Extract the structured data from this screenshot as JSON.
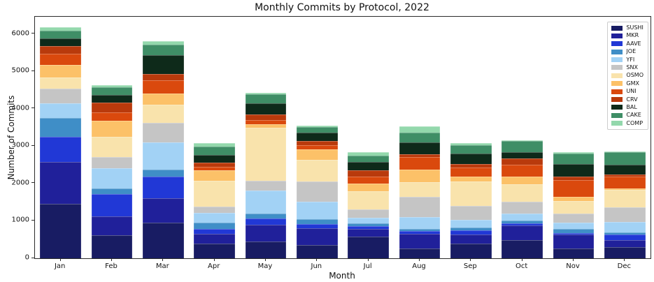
{
  "chart_data": {
    "type": "bar",
    "stacked": true,
    "title": "Monthly Commits by Protocol, 2022",
    "xlabel": "Month",
    "ylabel": "Number of Commits",
    "categories": [
      "Jan",
      "Feb",
      "Mar",
      "Apr",
      "May",
      "Jun",
      "Jul",
      "Aug",
      "Sep",
      "Oct",
      "Nov",
      "Dec"
    ],
    "yticks": [
      0,
      1000,
      2000,
      3000,
      4000,
      5000,
      6000
    ],
    "ylim": [
      0,
      6460
    ],
    "grid": false,
    "legend_position": "upper right",
    "series": [
      {
        "name": "SUSHI",
        "color": "#181c63",
        "values": [
          1450,
          620,
          960,
          400,
          440,
          360,
          570,
          260,
          390,
          480,
          270,
          300
        ]
      },
      {
        "name": "MKR",
        "color": "#20209a",
        "values": [
          1130,
          500,
          640,
          250,
          460,
          440,
          220,
          390,
          250,
          400,
          360,
          190
        ]
      },
      {
        "name": "AAVE",
        "color": "#2138d6",
        "values": [
          660,
          590,
          590,
          140,
          160,
          110,
          60,
          80,
          110,
          50,
          50,
          140
        ]
      },
      {
        "name": "JOE",
        "color": "#3f8ec7",
        "values": [
          510,
          160,
          190,
          170,
          140,
          140,
          90,
          60,
          80,
          80,
          110,
          60
        ]
      },
      {
        "name": "YFI",
        "color": "#a2d2f5",
        "values": [
          390,
          540,
          720,
          250,
          620,
          470,
          150,
          310,
          200,
          190,
          160,
          290
        ]
      },
      {
        "name": "SNX",
        "color": "#c5c5c5",
        "values": [
          390,
          300,
          520,
          170,
          250,
          530,
          220,
          540,
          370,
          310,
          250,
          380
        ]
      },
      {
        "name": "OSMO",
        "color": "#f9e3ac",
        "values": [
          310,
          530,
          480,
          690,
          1430,
          590,
          490,
          390,
          660,
          470,
          340,
          470
        ]
      },
      {
        "name": "GMX",
        "color": "#fcc168",
        "values": [
          330,
          430,
          310,
          280,
          90,
          280,
          190,
          340,
          120,
          200,
          110,
          40
        ]
      },
      {
        "name": "UNI",
        "color": "#da490d",
        "values": [
          300,
          240,
          350,
          90,
          110,
          100,
          200,
          330,
          240,
          330,
          450,
          320
        ]
      },
      {
        "name": "CRV",
        "color": "#b93a0c",
        "values": [
          215,
          260,
          170,
          120,
          140,
          110,
          160,
          80,
          110,
          160,
          80,
          60
        ]
      },
      {
        "name": "BAL",
        "color": "#0e2a1a",
        "values": [
          205,
          200,
          510,
          200,
          310,
          240,
          220,
          320,
          270,
          160,
          340,
          250
        ]
      },
      {
        "name": "CAKE",
        "color": "#3f8e66",
        "values": [
          190,
          200,
          270,
          220,
          240,
          140,
          180,
          270,
          230,
          300,
          290,
          330
        ]
      },
      {
        "name": "COMP",
        "color": "#93d8ac",
        "values": [
          105,
          70,
          90,
          105,
          30,
          40,
          80,
          160,
          60,
          30,
          30,
          20
        ]
      }
    ]
  }
}
